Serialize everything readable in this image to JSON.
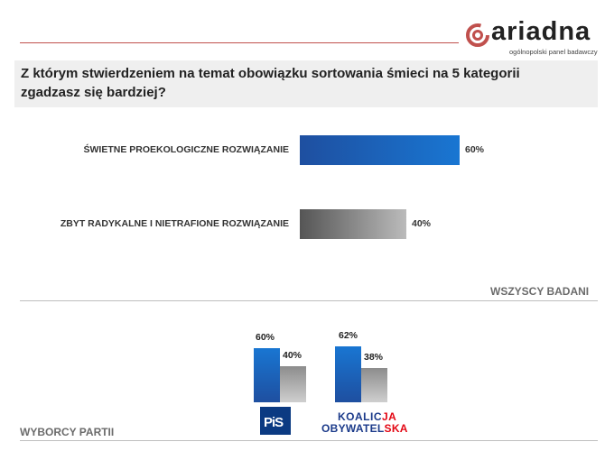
{
  "header": {
    "logo_text": "ariadna",
    "logo_subtitle": "ogólnopolski panel badawczy",
    "question": "Z którym stwierdzeniem na temat obowiązku sortowania śmieci na 5 kategorii zgadzasz się bardziej?"
  },
  "colors": {
    "accent_red": "#c0504d",
    "blue": "#1e4fa0",
    "gray": "#888888"
  },
  "chart_data": [
    {
      "type": "bar",
      "orientation": "horizontal",
      "categories": [
        "ŚWIETNE PROEKOLOGICZNE ROZWIĄZANIE",
        "ZBYT RADYKALNE I NIETRAFIONE ROZWIĄZANIE"
      ],
      "values": [
        60,
        40
      ],
      "value_labels": [
        "60%",
        "40%"
      ],
      "subtitle": "WSZYSCY BADANI",
      "xlim": [
        0,
        100
      ]
    },
    {
      "type": "bar",
      "orientation": "vertical",
      "subtitle": "WYBORCY PARTII",
      "groups": [
        {
          "party": "PiS",
          "values": [
            60,
            40
          ],
          "value_labels": [
            "60%",
            "40%"
          ]
        },
        {
          "party": "KOALICJA OBYWATELSKA",
          "values": [
            62,
            38
          ],
          "value_labels": [
            "62%",
            "38%"
          ]
        }
      ],
      "ylim": [
        0,
        100
      ]
    }
  ],
  "logos": {
    "pis": "PiS",
    "ko_line1_a": "KOALIC",
    "ko_line1_b": "JA",
    "ko_line2_a": "OBYWATEL",
    "ko_line2_b": "SKA"
  }
}
